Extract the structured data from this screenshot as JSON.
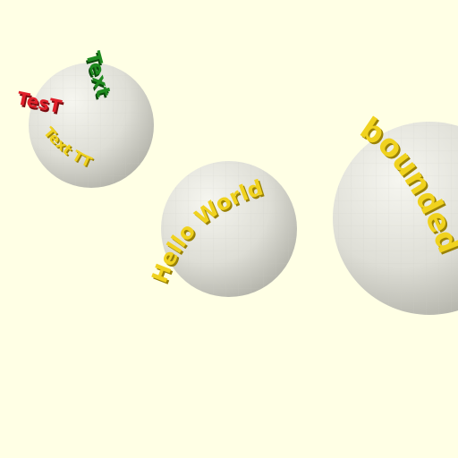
{
  "colors": {
    "background": "#ffffe5",
    "sphere_light": "#f4f4ee",
    "sphere_mid": "#d7d7cf",
    "sphere_dark": "#a9a9a0",
    "text_yellow": "#f0d21e",
    "text_yellow_shadow": "#9a8205",
    "text_green": "#1f8a1f",
    "text_green_shadow": "#0b4a0b",
    "text_red": "#e0202a",
    "text_red_shadow": "#7d0c10"
  },
  "scene": {
    "sphere_left": {
      "label_red": "TesT",
      "label_green": "Text",
      "label_yellow_arc": "Text TT"
    },
    "sphere_middle": {
      "label_arc": "Hello World"
    },
    "sphere_right": {
      "label_arc": "bounded"
    }
  }
}
